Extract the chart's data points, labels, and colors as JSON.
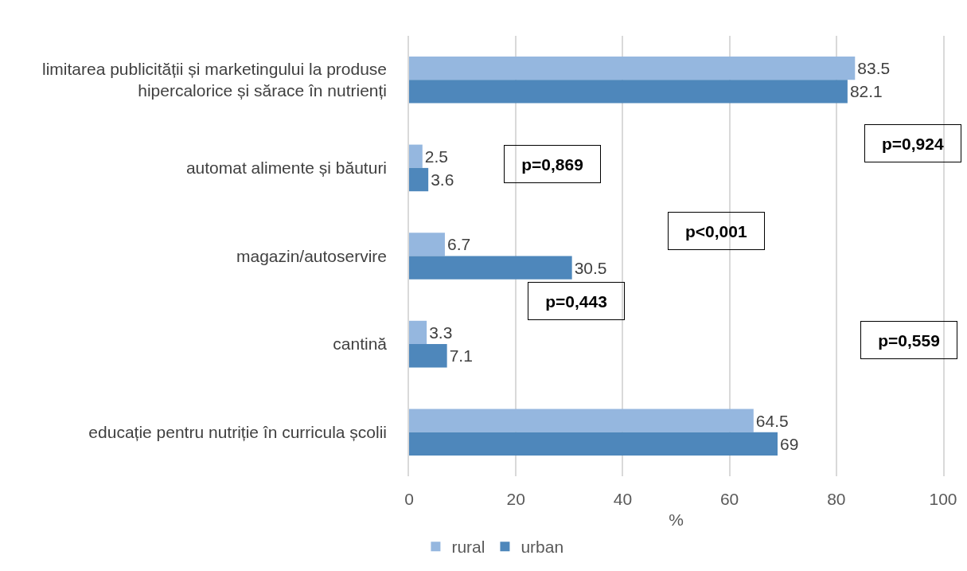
{
  "chart_data": {
    "type": "bar",
    "orientation": "horizontal",
    "categories": [
      "limitarea publicității și marketingului la produse hipercalorice și sărace în nutrienți",
      "automat alimente și băuturi",
      "magazin/autoservire",
      "cantină",
      "educație pentru nutriție în curricula școlii"
    ],
    "series": [
      {
        "name": "rural",
        "color": "#95b7df",
        "values": [
          83.5,
          2.5,
          6.7,
          3.3,
          64.5
        ]
      },
      {
        "name": "urban",
        "color": "#4e87bb",
        "values": [
          82.1,
          3.6,
          30.5,
          7.1,
          69
        ]
      }
    ],
    "xlabel": "%",
    "xlim": [
      0,
      100
    ],
    "xticks": [
      0,
      20,
      40,
      60,
      80,
      100
    ],
    "grid": "x",
    "legend": "bottom left",
    "data_labels": true,
    "annotations": [
      "p=0,924",
      "p=0,869",
      "p<0,001",
      "p=0,443",
      "p=0,559"
    ]
  }
}
